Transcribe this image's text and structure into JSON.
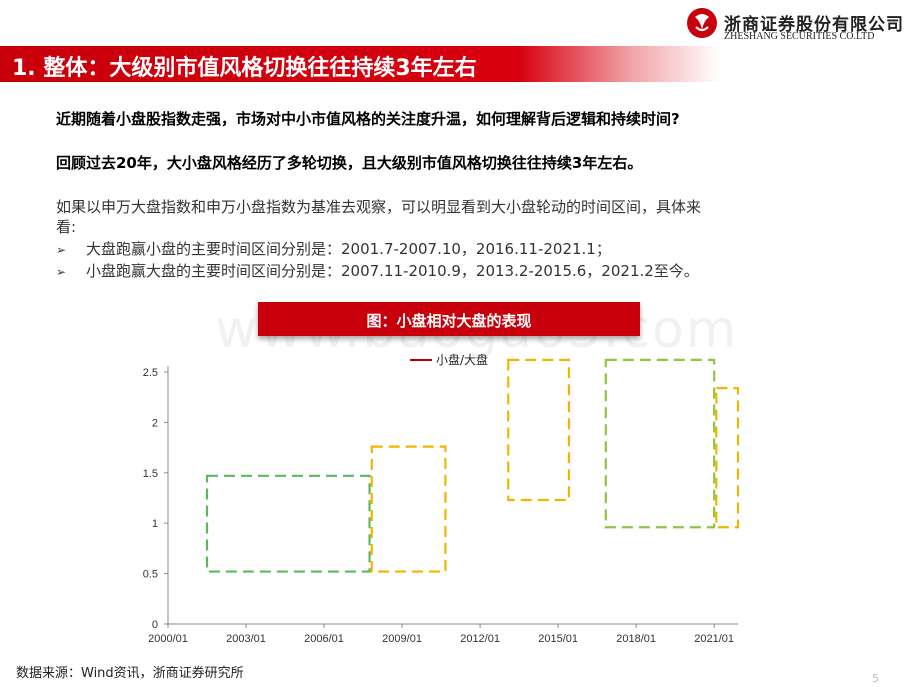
{
  "header": {
    "company_cn": "浙商证券股份有限公司",
    "company_en": "ZHESHANG SECURITIES CO.LTD"
  },
  "title_bar": {
    "text": "1. 整体：大级别市值风格切换往往持续3年左右"
  },
  "paragraphs": {
    "question": "近期随着小盘股指数走强，市场对中小市值风格的关注度升温，如何理解背后逻辑和持续时间?",
    "summary": "回顾过去20年，大小盘风格经历了多轮切换，且大级别市值风格切换往往持续3年左右。",
    "intro_line1": "如果以申万大盘指数和申万小盘指数为基准去观察，可以明显看到大小盘轮动的时间区间，具体来",
    "intro_line2": "看:"
  },
  "bullets": [
    {
      "marker": "➢",
      "text": "大盘跑赢小盘的主要时间区间分别是：2001.7-2007.10，2016.11-2021.1；"
    },
    {
      "marker": "➢",
      "text": "小盘跑赢大盘的主要时间区间分别是：2007.11-2010.9，2013.2-2015.6，2021.2至今。"
    }
  ],
  "figure": {
    "title": "图：小盘相对大盘的表现"
  },
  "watermark": "www.baogao3.com",
  "chart_data": {
    "type": "line",
    "x_tick_labels": [
      "2000/01",
      "2003/01",
      "2006/01",
      "2009/01",
      "2012/01",
      "2015/01",
      "2018/01",
      "2021/01"
    ],
    "y_tick_labels": [
      "0",
      "0.5",
      "1",
      "1.5",
      "2",
      "2.5"
    ],
    "ylim": [
      0,
      2.5
    ],
    "xlim": [
      "2000/01",
      "2021/12"
    ],
    "legend_position": "top",
    "series": [
      {
        "name": "小盘/大盘",
        "color": "#c00000",
        "values": []
      }
    ],
    "annotations": [
      {
        "type": "period-box",
        "label": "大盘跑赢小盘",
        "x_start": "2001/07",
        "x_end": "2007/10",
        "y_low": 0.52,
        "y_high": 1.47,
        "color": "#5cb85c"
      },
      {
        "type": "period-box",
        "label": "小盘跑赢大盘",
        "x_start": "2007/11",
        "x_end": "2010/09",
        "y_low": 0.52,
        "y_high": 1.76,
        "color": "#f2b400"
      },
      {
        "type": "period-box",
        "label": "小盘跑赢大盘",
        "x_start": "2013/02",
        "x_end": "2015/06",
        "y_low": 1.23,
        "y_high": 2.62,
        "color": "#f2b400"
      },
      {
        "type": "period-box",
        "label": "大盘跑赢小盘",
        "x_start": "2016/11",
        "x_end": "2021/01",
        "y_low": 0.96,
        "y_high": 2.62,
        "color": "#8dc63f"
      },
      {
        "type": "period-box",
        "label": "小盘跑赢大盘",
        "x_start": "2021/02",
        "x_end": "2021/12",
        "y_low": 0.96,
        "y_high": 2.34,
        "color": "#f2b400"
      }
    ]
  },
  "footer": {
    "source": "数据来源：Wind资讯，浙商证券研究所",
    "page": "5"
  }
}
